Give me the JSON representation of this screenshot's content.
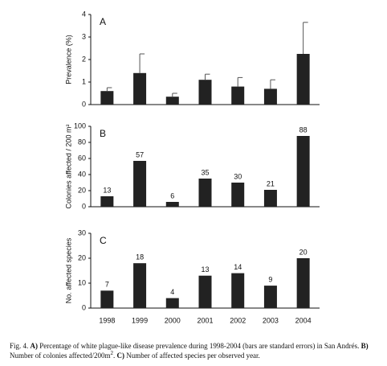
{
  "chart_data": [
    {
      "type": "bar",
      "panel_label": "A",
      "y_label": "Prevalence (%)",
      "values": [
        0.6,
        1.4,
        0.35,
        1.1,
        0.8,
        0.7,
        2.25
      ],
      "errors": [
        0.15,
        0.85,
        0.15,
        0.25,
        0.4,
        0.4,
        1.4
      ],
      "color": "#222222",
      "ylim": [
        0,
        4
      ],
      "yticks": [
        0,
        1,
        2,
        3,
        4
      ]
    },
    {
      "type": "bar",
      "panel_label": "B",
      "y_label": "Colonies affected / 200 m²",
      "values": [
        13,
        57,
        6,
        35,
        30,
        21,
        88
      ],
      "data_labels": true,
      "color": "#222222",
      "ylim": [
        0,
        100
      ],
      "yticks": [
        0,
        20,
        40,
        60,
        80,
        100
      ]
    },
    {
      "type": "bar",
      "panel_label": "C",
      "y_label": "No. affected species",
      "categories": [
        "1998",
        "1999",
        "2000",
        "2001",
        "2002",
        "2003",
        "2004"
      ],
      "values": [
        7,
        18,
        4,
        13,
        14,
        9,
        20
      ],
      "data_labels": true,
      "color": "#222222",
      "ylim": [
        0,
        30
      ],
      "yticks": [
        0,
        10,
        20,
        30
      ]
    }
  ],
  "caption": [
    {
      "text": "Fig. 4. "
    },
    {
      "text": "A)",
      "bold": true
    },
    {
      "text": " Percentage of white plague-like disease prevalence during 1998-2004 (bars are standard errors) in San Andrés. "
    },
    {
      "text": "B)",
      "bold": true
    },
    {
      "text": " Number of colonies affected/200m"
    },
    {
      "text": "2",
      "sup": true
    },
    {
      "text": ".  "
    },
    {
      "text": "C)",
      "bold": true
    },
    {
      "text": " Number of affected species per observed year."
    }
  ]
}
